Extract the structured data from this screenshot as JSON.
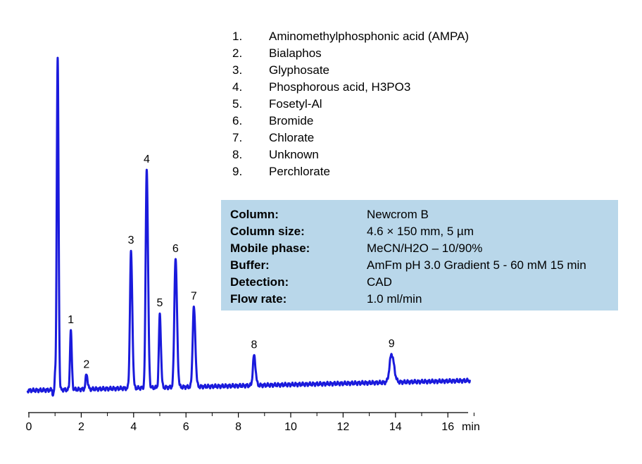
{
  "legend": [
    {
      "num": "1.",
      "name": "Aminomethylphosphonic acid (AMPA)"
    },
    {
      "num": "2.",
      "name": "Bialaphos"
    },
    {
      "num": "3.",
      "name": "Glyphosate"
    },
    {
      "num": "4.",
      "name": "Phosphorous acid,  H3PO3"
    },
    {
      "num": "5.",
      "name": "Fosetyl-Al"
    },
    {
      "num": "6.",
      "name": "Bromide"
    },
    {
      "num": "7.",
      "name": "Chlorate"
    },
    {
      "num": "8.",
      "name": "Unknown"
    },
    {
      "num": "9.",
      "name": "Perchlorate"
    }
  ],
  "conditions": [
    {
      "label": "Column:",
      "value": "Newcrom B"
    },
    {
      "label": "Column size:",
      "value": "4.6 × 150 mm, 5 µm"
    },
    {
      "label": "Mobile phase:",
      "value": "MeCN/H2O – 10/90%"
    },
    {
      "label": "Buffer:",
      "value": "AmFm pH 3.0 Gradient  5 - 60 mM 15 min"
    },
    {
      "label": "Detection:",
      "value": "CAD"
    },
    {
      "label": "Flow rate:",
      "value": "1.0 ml/min"
    }
  ],
  "chart_data": {
    "type": "line",
    "xlabel": "min",
    "ylabel": "",
    "xlim": [
      0,
      17
    ],
    "x_ticks": [
      "0",
      "2",
      "4",
      "6",
      "8",
      "10",
      "12",
      "14",
      "16"
    ],
    "y_axis_shown": false,
    "grid": false,
    "line_color": "#1a1adc",
    "baseline": {
      "start": 0.02,
      "end": 0.05
    },
    "solvent_front": {
      "time": 1.1,
      "height": 1.0,
      "width": 0.035
    },
    "peaks": [
      {
        "label": "1",
        "time": 1.6,
        "height": 0.18,
        "width": 0.03
      },
      {
        "label": "2",
        "time": 2.2,
        "height": 0.045,
        "width": 0.035
      },
      {
        "label": "3",
        "time": 3.9,
        "height": 0.41,
        "width": 0.04
      },
      {
        "label": "4",
        "time": 4.5,
        "height": 0.66,
        "width": 0.04
      },
      {
        "label": "5",
        "time": 5.0,
        "height": 0.22,
        "width": 0.035
      },
      {
        "label": "6",
        "time": 5.6,
        "height": 0.39,
        "width": 0.045
      },
      {
        "label": "7",
        "time": 6.3,
        "height": 0.24,
        "width": 0.045
      },
      {
        "label": "8",
        "time": 8.6,
        "height": 0.09,
        "width": 0.045
      },
      {
        "label": "9",
        "time": 13.85,
        "height": 0.085,
        "width": 0.075
      }
    ]
  }
}
